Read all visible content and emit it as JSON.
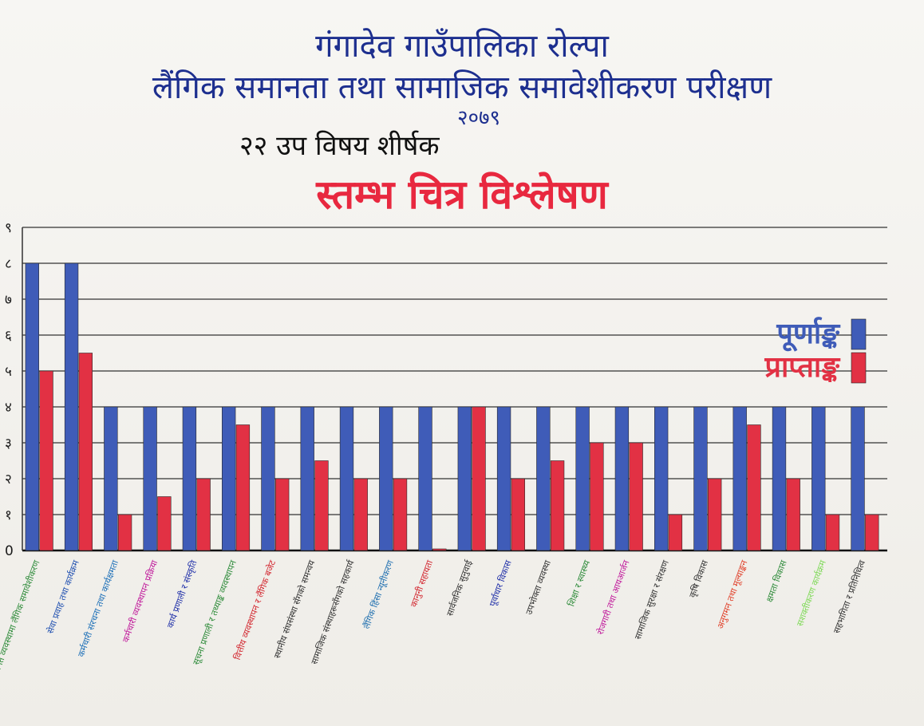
{
  "title_line1": "गंगादेव गाउँपालिका रोल्पा",
  "title_line2": "लैंगिक समानता तथा सामाजिक समावेशीकरण परीक्षण",
  "year": "२०७९",
  "subtitle": "२२ उप विषय शीर्षक",
  "heading": "स्तम्भ चित्र विश्लेषण",
  "chart_data": {
    "type": "bar",
    "y_tick_labels": [
      "0",
      "१",
      "२",
      "३",
      "४",
      "५",
      "६",
      "७",
      "८",
      "९"
    ],
    "ylim": [
      0,
      9
    ],
    "grid": true,
    "legend_position": "right",
    "categories": [
      "नीतिगत व्यवस्थामा लैंगिक समावेशीकरण",
      "सेवा प्रवाह तथा कार्यक्रम",
      "कर्मचारी संरचना तथा कार्यक्षमता",
      "कर्मचारी व्यवस्थापन प्रक्रिया",
      "कार्य प्रणाली र संस्कृति",
      "सूचना प्रणाली र तथ्याङ्क व्यवस्थापन",
      "वित्तीय व्यवस्थापन र लैंगिक बजेट",
      "स्थानीय संघसंस्था सँगको समन्वय",
      "सामाजिक संस्थाहरूसँगको सहकार्य",
      "लैंगिक हिंसा न्यूनीकरण",
      "कानुनी सहायता",
      "सार्वजनिक सुनुवाई",
      "पूर्वाधार विकास",
      "उपभोक्ता व्यवस्था",
      "शिक्षा र स्वास्थ्य",
      "रोजगारी तथा आयआर्जन",
      "सामाजिक सुरक्षा र संरक्षण",
      "कृषि विकास",
      "अनुगमन तथा मूल्याङ्कन",
      "क्षमता विकास",
      "सशक्तीकरण कार्यक्रम",
      "सहभागिता र प्रतिनिधित्व"
    ],
    "category_label_colors": [
      "#2e8b3a",
      "#1f4fb0",
      "#1c6fb8",
      "#c0199b",
      "#1f2fa8",
      "#2e8b3a",
      "#d2252e",
      "#333333",
      "#333333",
      "#1f6fb0",
      "#d2252e",
      "#333333",
      "#1f2fa8",
      "#333333",
      "#2e8b3a",
      "#c0199b",
      "#333333",
      "#333333",
      "#e0402a",
      "#2e8b3a",
      "#7ed957",
      "#333333"
    ],
    "series": [
      {
        "name": "पूर्णाङ्क",
        "color": "#3f5cb8",
        "values": [
          8,
          8,
          4,
          4,
          4,
          4,
          4,
          4,
          4,
          4,
          4,
          4,
          4,
          4,
          4,
          4,
          4,
          4,
          4,
          4,
          4,
          4
        ]
      },
      {
        "name": "प्राप्ताङ्क",
        "color": "#e23144",
        "values": [
          5,
          5.5,
          1,
          1.5,
          2,
          3.5,
          2,
          2.5,
          2,
          2,
          0,
          4,
          2,
          2.5,
          3,
          3,
          1,
          2,
          3.5,
          2,
          1,
          1
        ]
      }
    ]
  }
}
